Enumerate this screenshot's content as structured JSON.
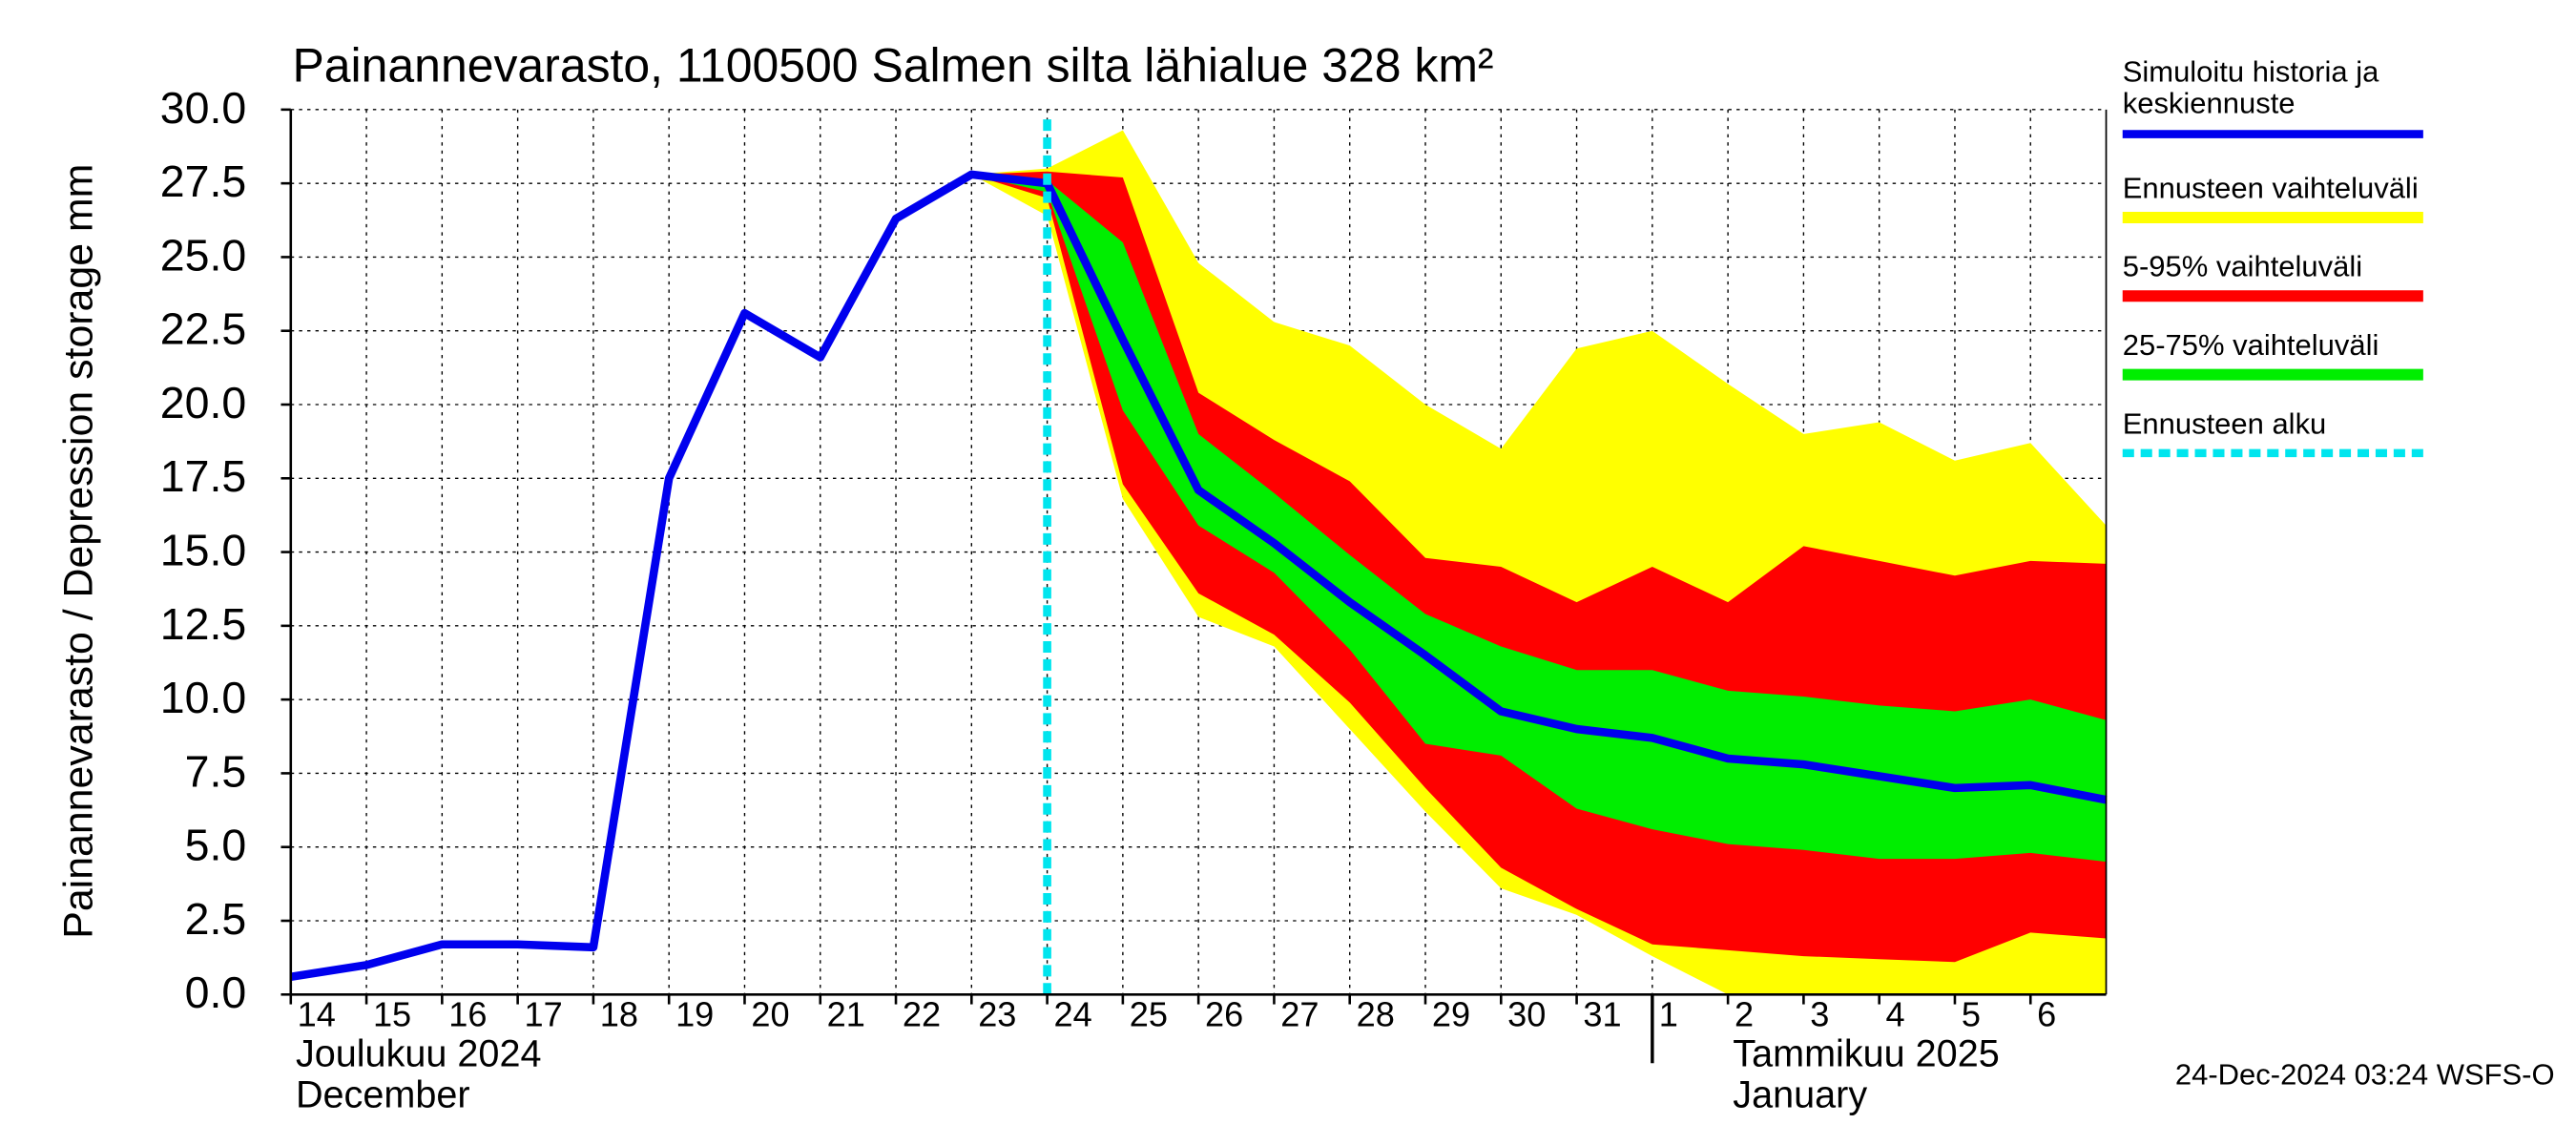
{
  "chart_data": {
    "type": "band-forecast",
    "title": "Painannevarasto, 1100500 Salmen silta lähialue 328 km²",
    "ylabel": "Painannevarasto / Depression storage    mm",
    "xlim": [
      0,
      24
    ],
    "xticks": [
      {
        "value": 0,
        "label": "14"
      },
      {
        "value": 1,
        "label": "15"
      },
      {
        "value": 2,
        "label": "16"
      },
      {
        "value": 3,
        "label": "17"
      },
      {
        "value": 4,
        "label": "18"
      },
      {
        "value": 5,
        "label": "19"
      },
      {
        "value": 6,
        "label": "20"
      },
      {
        "value": 7,
        "label": "21"
      },
      {
        "value": 8,
        "label": "22"
      },
      {
        "value": 9,
        "label": "23"
      },
      {
        "value": 10,
        "label": "24"
      },
      {
        "value": 11,
        "label": "25"
      },
      {
        "value": 12,
        "label": "26"
      },
      {
        "value": 13,
        "label": "27"
      },
      {
        "value": 14,
        "label": "28"
      },
      {
        "value": 15,
        "label": "29"
      },
      {
        "value": 16,
        "label": "30"
      },
      {
        "value": 17,
        "label": "31"
      },
      {
        "value": 18,
        "label": "1"
      },
      {
        "value": 19,
        "label": "2"
      },
      {
        "value": 20,
        "label": "3"
      },
      {
        "value": 21,
        "label": "4"
      },
      {
        "value": 22,
        "label": "5"
      },
      {
        "value": 23,
        "label": "6"
      }
    ],
    "ylim": [
      0,
      30
    ],
    "yticks": [
      {
        "value": 0,
        "label": "0.0"
      },
      {
        "value": 2.5,
        "label": "2.5"
      },
      {
        "value": 5,
        "label": "5.0"
      },
      {
        "value": 7.5,
        "label": "7.5"
      },
      {
        "value": 10,
        "label": "10.0"
      },
      {
        "value": 12.5,
        "label": "12.5"
      },
      {
        "value": 15,
        "label": "15.0"
      },
      {
        "value": 17.5,
        "label": "17.5"
      },
      {
        "value": 20,
        "label": "20.0"
      },
      {
        "value": 22.5,
        "label": "22.5"
      },
      {
        "value": 25,
        "label": "25.0"
      },
      {
        "value": 27.5,
        "label": "27.5"
      },
      {
        "value": 30,
        "label": "30.0"
      }
    ],
    "grid": true,
    "series": [
      {
        "name": "Simuloitu historia ja keskiennuste",
        "color": "#0000ee",
        "kind": "line",
        "x": [
          0,
          1,
          2,
          3,
          4,
          5,
          6,
          7,
          8,
          9,
          10,
          11,
          12,
          13,
          14,
          15,
          16,
          17,
          18,
          19,
          20,
          21,
          22,
          23,
          24
        ],
        "values": [
          0.6,
          1.0,
          1.7,
          1.7,
          1.6,
          17.5,
          23.1,
          21.6,
          26.3,
          27.8,
          27.5,
          22.2,
          17.1,
          15.3,
          13.3,
          11.5,
          9.6,
          9.0,
          8.7,
          8.0,
          7.8,
          7.4,
          7.0,
          7.1,
          6.6
        ]
      },
      {
        "name": "Ennusteen vaihteluväli",
        "color": "#ffff00",
        "kind": "band",
        "x": [
          9,
          10,
          11,
          12,
          13,
          14,
          15,
          16,
          17,
          18,
          19,
          20,
          21,
          22,
          23,
          24
        ],
        "upper": [
          27.8,
          28.0,
          29.3,
          24.8,
          22.8,
          22.0,
          20.0,
          18.5,
          21.9,
          22.5,
          20.7,
          19.0,
          19.4,
          18.1,
          18.7,
          15.9
        ],
        "lower": [
          27.8,
          26.4,
          16.8,
          12.8,
          11.8,
          9.0,
          6.2,
          3.6,
          2.7,
          1.3,
          0,
          0,
          0,
          0,
          0,
          0
        ]
      },
      {
        "name": "5-95% vaihteluväli",
        "color": "#ff0000",
        "kind": "band",
        "x": [
          9,
          10,
          11,
          12,
          13,
          14,
          15,
          16,
          17,
          18,
          19,
          20,
          21,
          22,
          23,
          24
        ],
        "upper": [
          27.8,
          27.9,
          27.7,
          20.4,
          18.8,
          17.4,
          14.8,
          14.5,
          13.3,
          14.5,
          13.3,
          15.2,
          14.7,
          14.2,
          14.7,
          14.6
        ],
        "lower": [
          27.8,
          27.0,
          17.3,
          13.6,
          12.2,
          9.9,
          7.0,
          4.3,
          2.9,
          1.7,
          1.5,
          1.3,
          1.2,
          1.1,
          2.1,
          1.9
        ]
      },
      {
        "name": "25-75% vaihteluväli",
        "color": "#00ee00",
        "kind": "band",
        "x": [
          9,
          10,
          11,
          12,
          13,
          14,
          15,
          16,
          17,
          18,
          19,
          20,
          21,
          22,
          23,
          24
        ],
        "upper": [
          27.8,
          27.6,
          25.5,
          19.0,
          17.0,
          14.9,
          12.9,
          11.8,
          11.0,
          11.0,
          10.3,
          10.1,
          9.8,
          9.6,
          10.0,
          9.3
        ],
        "lower": [
          27.8,
          27.2,
          19.8,
          15.9,
          14.3,
          11.7,
          8.5,
          8.1,
          6.3,
          5.6,
          5.1,
          4.9,
          4.6,
          4.6,
          4.8,
          4.5
        ]
      }
    ],
    "forecast_start": {
      "name": "Ennusteen alku",
      "x": 10,
      "color": "#00e5ee"
    },
    "month_divider": 18,
    "month_labels": [
      {
        "x": 0,
        "line1": "Joulukuu  2024",
        "line2": "December"
      },
      {
        "x": 19,
        "line1": "Tammikuu  2025",
        "line2": "January"
      }
    ],
    "footer": "24-Dec-2024 03:24 WSFS-O"
  }
}
